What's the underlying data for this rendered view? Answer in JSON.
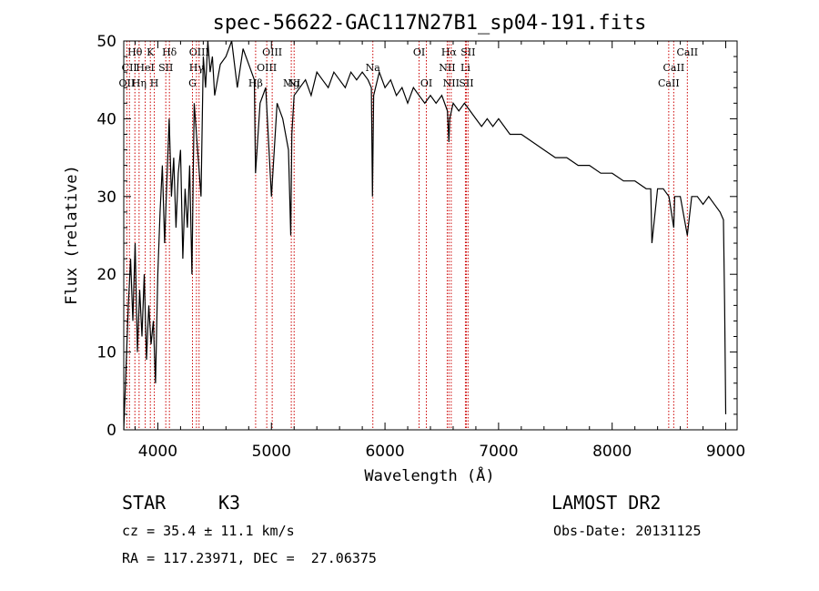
{
  "chart_data": {
    "type": "line",
    "title": "spec-56622-GAC117N27B1_sp04-191.fits",
    "xlabel": "Wavelength (Å)",
    "ylabel": "Flux (relative)",
    "xlim": [
      3700,
      9100
    ],
    "ylim": [
      0,
      50
    ],
    "xticks": [
      "4000",
      "5000",
      "6000",
      "7000",
      "8000",
      "9000"
    ],
    "yticks": [
      "0",
      "10",
      "20",
      "30",
      "40",
      "50"
    ],
    "grid": false,
    "series": [
      {
        "x": [
          3700,
          3720,
          3740,
          3760,
          3780,
          3800,
          3820,
          3840,
          3860,
          3880,
          3900,
          3920,
          3940,
          3960,
          3980,
          4000,
          4020,
          4040,
          4060,
          4080,
          4100,
          4120,
          4140,
          4160,
          4180,
          4200,
          4220,
          4240,
          4260,
          4280,
          4300,
          4320,
          4340,
          4360,
          4380,
          4400,
          4420,
          4440,
          4460,
          4480,
          4500,
          4550,
          4600,
          4650,
          4700,
          4750,
          4800,
          4850,
          4860,
          4900,
          4950,
          5000,
          5050,
          5100,
          5150,
          5170,
          5180,
          5200,
          5250,
          5300,
          5350,
          5400,
          5450,
          5500,
          5550,
          5600,
          5650,
          5700,
          5750,
          5800,
          5850,
          5880,
          5890,
          5900,
          5950,
          6000,
          6050,
          6100,
          6150,
          6200,
          6250,
          6300,
          6350,
          6400,
          6450,
          6500,
          6550,
          6563,
          6570,
          6600,
          6650,
          6700,
          6750,
          6800,
          6850,
          6900,
          6950,
          7000,
          7100,
          7200,
          7300,
          7400,
          7500,
          7600,
          7700,
          7800,
          7900,
          8000,
          8100,
          8200,
          8300,
          8340,
          8350,
          8400,
          8450,
          8500,
          8542,
          8550,
          8600,
          8662,
          8700,
          8750,
          8800,
          8850,
          8900,
          8950,
          8980,
          8990,
          9000
        ],
        "y": [
          0,
          8,
          16,
          22,
          14,
          24,
          10,
          18,
          12,
          20,
          9,
          16,
          11,
          14,
          6,
          20,
          28,
          34,
          24,
          32,
          40,
          30,
          35,
          26,
          33,
          36,
          22,
          31,
          26,
          34,
          20,
          42,
          38,
          34,
          30,
          48,
          44,
          50,
          46,
          48,
          43,
          47,
          48,
          50,
          44,
          49,
          47,
          45,
          33,
          42,
          44,
          30,
          42,
          40,
          36,
          25,
          38,
          43,
          44,
          45,
          43,
          46,
          45,
          44,
          46,
          45,
          44,
          46,
          45,
          46,
          45,
          44,
          30,
          43,
          46,
          44,
          45,
          43,
          44,
          42,
          44,
          43,
          42,
          43,
          42,
          43,
          41,
          37,
          40,
          42,
          41,
          42,
          41,
          40,
          39,
          40,
          39,
          40,
          38,
          38,
          37,
          36,
          35,
          35,
          34,
          34,
          33,
          33,
          32,
          32,
          31,
          31,
          24,
          31,
          31,
          30,
          26,
          30,
          30,
          25,
          30,
          30,
          29,
          30,
          29,
          28,
          27,
          16,
          2
        ]
      }
    ],
    "line_markers": [
      {
        "label": "Hθ",
        "x": 3798,
        "row": 1
      },
      {
        "label": "K",
        "x": 3934,
        "row": 1
      },
      {
        "label": "Hδ",
        "x": 4102,
        "row": 1
      },
      {
        "label": "OIII",
        "x": 4363,
        "row": 1
      },
      {
        "label": "OIII",
        "x": 5007,
        "row": 1
      },
      {
        "label": "OI",
        "x": 6300,
        "row": 1
      },
      {
        "label": "Hα",
        "x": 6563,
        "row": 1
      },
      {
        "label": "SII",
        "x": 6731,
        "row": 1
      },
      {
        "label": "CaII",
        "x": 8662,
        "row": 1
      },
      {
        "label": "CII",
        "x": 3750,
        "row": 2
      },
      {
        "label": "HeI",
        "x": 3889,
        "row": 2
      },
      {
        "label": "SII",
        "x": 4070,
        "row": 2
      },
      {
        "label": "Hγ",
        "x": 4340,
        "row": 2
      },
      {
        "label": "NI",
        "x": 5200,
        "row": 3
      },
      {
        "label": "OIII",
        "x": 4959,
        "row": 2
      },
      {
        "label": "Na",
        "x": 5893,
        "row": 2
      },
      {
        "label": "NII",
        "x": 6548,
        "row": 2
      },
      {
        "label": "Li",
        "x": 6708,
        "row": 2
      },
      {
        "label": "CaII",
        "x": 8542,
        "row": 2
      },
      {
        "label": "OII",
        "x": 3727,
        "row": 3
      },
      {
        "label": "Hη",
        "x": 3835,
        "row": 3
      },
      {
        "label": "H",
        "x": 3969,
        "row": 3
      },
      {
        "label": "G",
        "x": 4305,
        "row": 3
      },
      {
        "label": "Hβ",
        "x": 4861,
        "row": 3
      },
      {
        "label": "Mg",
        "x": 5175,
        "row": 3
      },
      {
        "label": "OI",
        "x": 6364,
        "row": 3
      },
      {
        "label": "NII",
        "x": 6583,
        "row": 3
      },
      {
        "label": "SII",
        "x": 6716,
        "row": 3
      },
      {
        "label": "CaII",
        "x": 8498,
        "row": 3
      }
    ]
  },
  "info": {
    "object_class": "STAR",
    "subclass": "K3",
    "survey": "LAMOST DR2",
    "cz": "cz = 35.4 ± 11.1 km/s",
    "obs_date": "Obs-Date: 20131125",
    "coords": "RA = 117.23971, DEC =  27.06375"
  },
  "colors": {
    "spectrum": "#000000",
    "marker": "#cc0000",
    "axes": "#000000"
  }
}
